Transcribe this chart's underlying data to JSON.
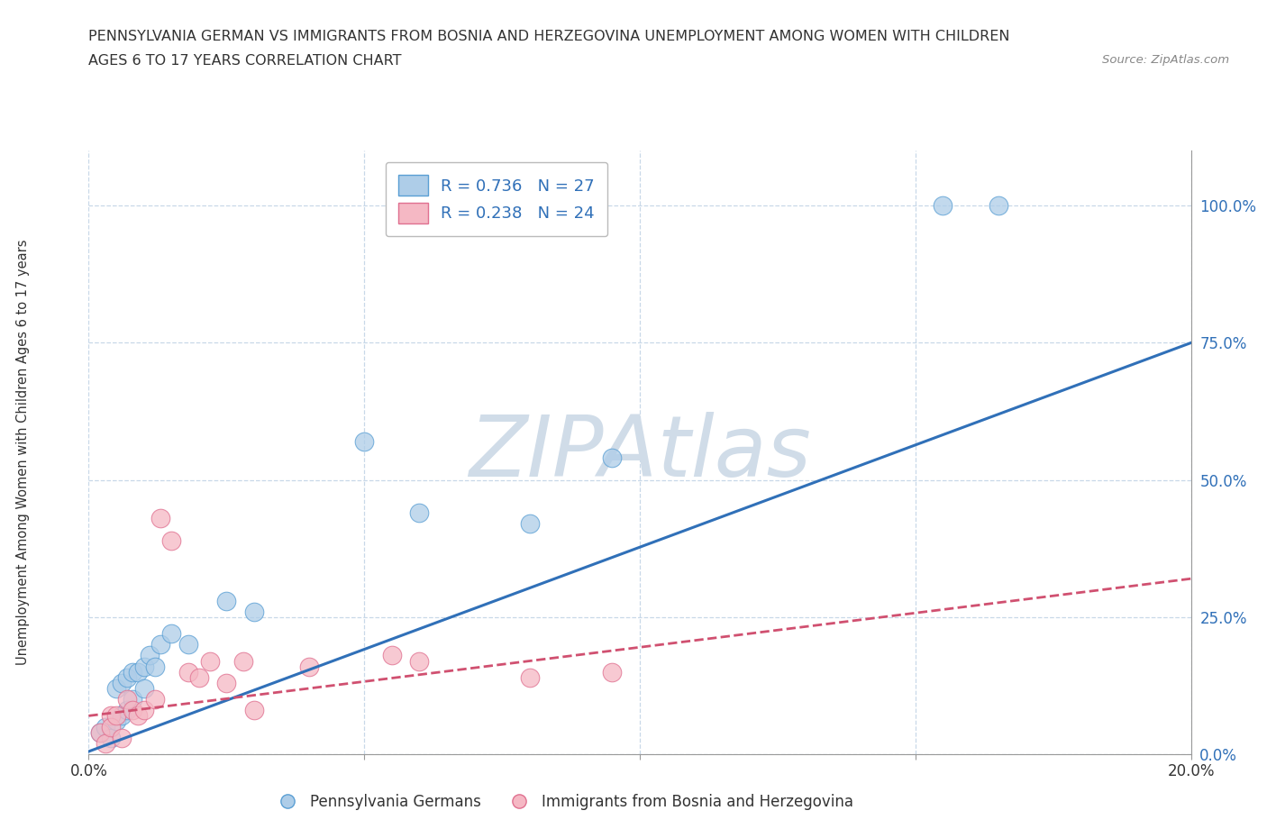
{
  "title_line1": "PENNSYLVANIA GERMAN VS IMMIGRANTS FROM BOSNIA AND HERZEGOVINA UNEMPLOYMENT AMONG WOMEN WITH CHILDREN",
  "title_line2": "AGES 6 TO 17 YEARS CORRELATION CHART",
  "source": "Source: ZipAtlas.com",
  "ylabel": "Unemployment Among Women with Children Ages 6 to 17 years",
  "xlim": [
    0.0,
    0.2
  ],
  "ylim": [
    0.0,
    1.1
  ],
  "ytick_positions": [
    0.0,
    0.25,
    0.5,
    0.75,
    1.0
  ],
  "ytick_labels": [
    "0.0%",
    "25.0%",
    "50.0%",
    "75.0%",
    "100.0%"
  ],
  "blue_R": "R = 0.736",
  "blue_N": "N = 27",
  "pink_R": "R = 0.238",
  "pink_N": "N = 24",
  "blue_color": "#aecde8",
  "pink_color": "#f5b8c4",
  "blue_edge_color": "#5a9fd4",
  "pink_edge_color": "#e07090",
  "blue_line_color": "#3070b8",
  "pink_line_color": "#d05070",
  "legend_label_blue": "Pennsylvania Germans",
  "legend_label_pink": "Immigrants from Bosnia and Herzegovina",
  "blue_scatter_x": [
    0.002,
    0.003,
    0.004,
    0.005,
    0.005,
    0.006,
    0.006,
    0.007,
    0.007,
    0.008,
    0.008,
    0.009,
    0.01,
    0.01,
    0.011,
    0.012,
    0.013,
    0.015,
    0.018,
    0.025,
    0.03,
    0.05,
    0.06,
    0.08,
    0.095,
    0.155,
    0.165
  ],
  "blue_scatter_y": [
    0.04,
    0.05,
    0.03,
    0.06,
    0.12,
    0.07,
    0.13,
    0.14,
    0.08,
    0.15,
    0.1,
    0.15,
    0.16,
    0.12,
    0.18,
    0.16,
    0.2,
    0.22,
    0.2,
    0.28,
    0.26,
    0.57,
    0.44,
    0.42,
    0.54,
    1.0,
    1.0
  ],
  "pink_scatter_x": [
    0.002,
    0.003,
    0.004,
    0.004,
    0.005,
    0.006,
    0.007,
    0.008,
    0.009,
    0.01,
    0.012,
    0.013,
    0.015,
    0.018,
    0.02,
    0.022,
    0.025,
    0.028,
    0.03,
    0.04,
    0.055,
    0.06,
    0.08,
    0.095
  ],
  "pink_scatter_y": [
    0.04,
    0.02,
    0.07,
    0.05,
    0.07,
    0.03,
    0.1,
    0.08,
    0.07,
    0.08,
    0.1,
    0.43,
    0.39,
    0.15,
    0.14,
    0.17,
    0.13,
    0.17,
    0.08,
    0.16,
    0.18,
    0.17,
    0.14,
    0.15
  ],
  "blue_trendline_x": [
    0.0,
    0.2
  ],
  "blue_trendline_y": [
    0.005,
    0.75
  ],
  "pink_trendline_x": [
    0.0,
    0.2
  ],
  "pink_trendline_y": [
    0.07,
    0.32
  ],
  "watermark": "ZIPAtlas",
  "watermark_color": "#d0dce8",
  "background_color": "#ffffff",
  "grid_color": "#c8d8e8"
}
